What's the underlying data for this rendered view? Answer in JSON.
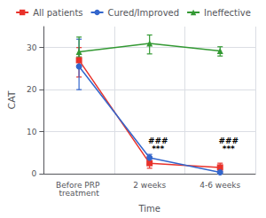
{
  "chart_data": {
    "type": "line",
    "categories": [
      "Before PRP treatment",
      "2 weeks",
      "4-6 weeks"
    ],
    "series": [
      {
        "name": "All patients",
        "color": "#e8312a",
        "marker": "square",
        "values": [
          27.0,
          2.5,
          1.5
        ],
        "yerr_low": [
          4.0,
          1.2,
          1.0
        ],
        "yerr_high": [
          3.0,
          1.5,
          1.0
        ]
      },
      {
        "name": "Cured/Improved",
        "color": "#3366cc",
        "marker": "circle",
        "values": [
          25.5,
          3.8,
          0.3
        ],
        "yerr_low": [
          5.5,
          1.5,
          0.3
        ],
        "yerr_high": [
          6.5,
          0.8,
          0.3
        ]
      },
      {
        "name": "Ineffective",
        "color": "#339933",
        "marker": "triangle",
        "values": [
          29.0,
          31.0,
          29.2
        ],
        "yerr_low": [
          1.2,
          2.5,
          1.2
        ],
        "yerr_high": [
          3.5,
          2.0,
          1.0
        ]
      }
    ],
    "xlabel": "Time",
    "ylabel": "CAT",
    "ylim": [
      0,
      35
    ],
    "yticks": [
      0,
      10,
      20,
      30
    ],
    "grid": true,
    "legend": "top",
    "annotations": [
      {
        "text": "###",
        "x": "2 weeks",
        "y": 7.8
      },
      {
        "text": "***",
        "x": "2 weeks",
        "y": 5.8
      },
      {
        "text": "###",
        "x": "4-6 weeks",
        "y": 7.8
      },
      {
        "text": "***",
        "x": "4-6 weeks",
        "y": 5.8
      }
    ]
  }
}
